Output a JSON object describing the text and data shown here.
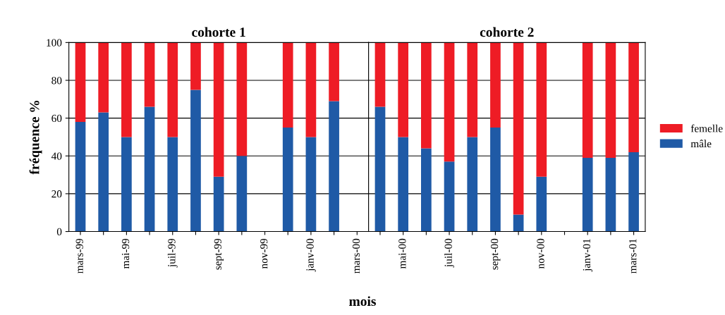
{
  "chart_data": [
    {
      "type": "bar",
      "title": "cohorte 1",
      "ylabel": "fréquence %",
      "xlabel": "mois",
      "stacked": true,
      "grid": "y",
      "ylim": [
        0,
        100
      ],
      "yticks": [
        0,
        20,
        40,
        60,
        80,
        100
      ],
      "categories": [
        "mars-99",
        null,
        "mai-99",
        null,
        "juil-99",
        null,
        "sept-99",
        null,
        "nov-99",
        null,
        "janv-00",
        null,
        "mars-00"
      ],
      "series": [
        {
          "color": "#1f5aa6",
          "values": [
            58,
            63,
            50,
            66,
            50,
            75,
            29,
            40,
            null,
            55,
            50,
            69,
            null
          ]
        },
        {
          "color": "#ee1c25",
          "values": [
            42,
            37,
            50,
            34,
            50,
            25,
            71,
            60,
            null,
            45,
            50,
            31,
            null
          ]
        }
      ]
    },
    {
      "type": "bar",
      "title": "cohorte 2",
      "stacked": true,
      "grid": "y",
      "ylim": [
        0,
        100
      ],
      "yticks": [
        0,
        20,
        40,
        60,
        80,
        100
      ],
      "tick_labels": "x",
      "legend": "right",
      "categories": [
        null,
        "mai-00",
        null,
        "juil-00",
        null,
        "sept-00",
        null,
        "nov-00",
        null,
        "janv-01",
        null,
        "mars-01"
      ],
      "series": [
        {
          "name": "mâle",
          "color": "#1f5aa6",
          "values": [
            66,
            50,
            44,
            37,
            50,
            55,
            9,
            29,
            null,
            39,
            39,
            42
          ]
        },
        {
          "name": "femelle",
          "color": "#ee1c25",
          "values": [
            34,
            50,
            56,
            63,
            50,
            45,
            91,
            71,
            null,
            61,
            61,
            58
          ]
        }
      ]
    }
  ]
}
